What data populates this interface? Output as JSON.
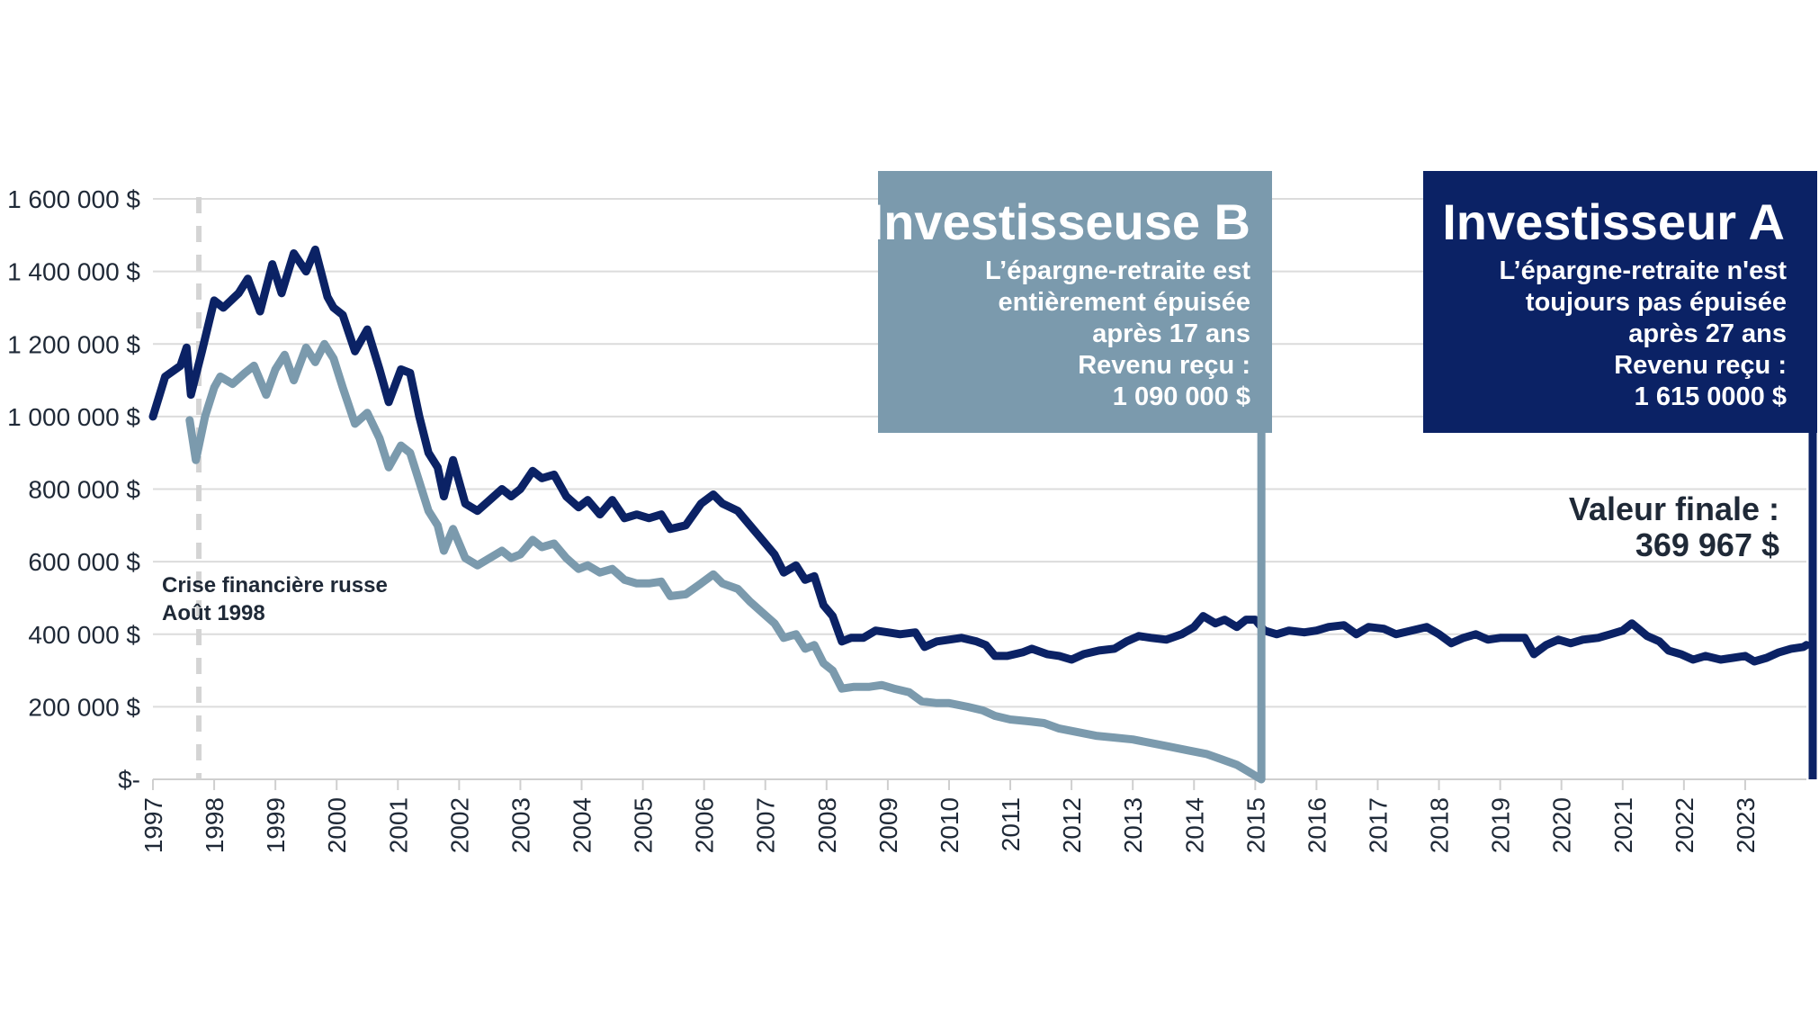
{
  "chart_data": {
    "type": "line",
    "x_unit": "year",
    "xlim": [
      1997,
      2024
    ],
    "ylim": [
      0,
      1600000
    ],
    "y_ticks": [
      0,
      200000,
      400000,
      600000,
      800000,
      1000000,
      1200000,
      1400000,
      1600000
    ],
    "y_tick_labels": [
      "$-",
      "200 000 $",
      "400 000 $",
      "600 000 $",
      "800 000 $",
      "1 000 000 $",
      "1 200 000 $",
      "1 400 000 $",
      "1 600 000 $"
    ],
    "x_tick_labels": [
      "1997",
      "1998",
      "1999",
      "2000",
      "2001",
      "2002",
      "2003",
      "2004",
      "2005",
      "2006",
      "2007",
      "2008",
      "2009",
      "2010",
      "2011",
      "2012",
      "2013",
      "2014",
      "2015",
      "2016",
      "2017",
      "2018",
      "2019",
      "2020",
      "2021",
      "2022",
      "2023"
    ],
    "grid": true,
    "series": [
      {
        "key": "investor_a",
        "color": "#0b2265",
        "points": [
          [
            1997.0,
            1000000
          ],
          [
            1997.2,
            1110000
          ],
          [
            1997.45,
            1140000
          ],
          [
            1997.55,
            1190000
          ],
          [
            1997.62,
            1060000
          ],
          [
            1997.8,
            1180000
          ],
          [
            1998.0,
            1320000
          ],
          [
            1998.15,
            1300000
          ],
          [
            1998.4,
            1340000
          ],
          [
            1998.55,
            1380000
          ],
          [
            1998.75,
            1290000
          ],
          [
            1998.95,
            1420000
          ],
          [
            1999.1,
            1340000
          ],
          [
            1999.3,
            1450000
          ],
          [
            1999.5,
            1400000
          ],
          [
            1999.65,
            1460000
          ],
          [
            1999.85,
            1330000
          ],
          [
            1999.95,
            1300000
          ],
          [
            2000.1,
            1280000
          ],
          [
            2000.3,
            1180000
          ],
          [
            2000.5,
            1240000
          ],
          [
            2000.7,
            1130000
          ],
          [
            2000.85,
            1040000
          ],
          [
            2001.05,
            1130000
          ],
          [
            2001.2,
            1120000
          ],
          [
            2001.35,
            1000000
          ],
          [
            2001.5,
            900000
          ],
          [
            2001.65,
            860000
          ],
          [
            2001.75,
            780000
          ],
          [
            2001.9,
            880000
          ],
          [
            2002.1,
            760000
          ],
          [
            2002.3,
            740000
          ],
          [
            2002.5,
            770000
          ],
          [
            2002.7,
            800000
          ],
          [
            2002.85,
            780000
          ],
          [
            2003.0,
            800000
          ],
          [
            2003.2,
            850000
          ],
          [
            2003.35,
            830000
          ],
          [
            2003.55,
            840000
          ],
          [
            2003.75,
            780000
          ],
          [
            2003.95,
            750000
          ],
          [
            2004.1,
            770000
          ],
          [
            2004.3,
            730000
          ],
          [
            2004.5,
            770000
          ],
          [
            2004.7,
            720000
          ],
          [
            2004.9,
            730000
          ],
          [
            2005.1,
            720000
          ],
          [
            2005.3,
            730000
          ],
          [
            2005.45,
            690000
          ],
          [
            2005.7,
            700000
          ],
          [
            2005.95,
            760000
          ],
          [
            2006.15,
            785000
          ],
          [
            2006.3,
            760000
          ],
          [
            2006.55,
            740000
          ],
          [
            2006.75,
            700000
          ],
          [
            2006.95,
            660000
          ],
          [
            2007.15,
            620000
          ],
          [
            2007.3,
            570000
          ],
          [
            2007.5,
            590000
          ],
          [
            2007.65,
            550000
          ],
          [
            2007.8,
            560000
          ],
          [
            2007.95,
            480000
          ],
          [
            2008.1,
            450000
          ],
          [
            2008.25,
            380000
          ],
          [
            2008.4,
            390000
          ],
          [
            2008.6,
            390000
          ],
          [
            2008.8,
            410000
          ],
          [
            2009.0,
            405000
          ],
          [
            2009.2,
            400000
          ],
          [
            2009.45,
            405000
          ],
          [
            2009.6,
            365000
          ],
          [
            2009.8,
            380000
          ],
          [
            2010.0,
            385000
          ],
          [
            2010.2,
            390000
          ],
          [
            2010.45,
            380000
          ],
          [
            2010.6,
            370000
          ],
          [
            2010.75,
            340000
          ],
          [
            2010.95,
            340000
          ],
          [
            2011.2,
            350000
          ],
          [
            2011.35,
            360000
          ],
          [
            2011.6,
            345000
          ],
          [
            2011.8,
            340000
          ],
          [
            2012.0,
            330000
          ],
          [
            2012.2,
            345000
          ],
          [
            2012.45,
            355000
          ],
          [
            2012.7,
            360000
          ],
          [
            2012.9,
            380000
          ],
          [
            2013.1,
            395000
          ],
          [
            2013.3,
            390000
          ],
          [
            2013.55,
            385000
          ],
          [
            2013.8,
            400000
          ],
          [
            2014.0,
            420000
          ],
          [
            2014.15,
            450000
          ],
          [
            2014.35,
            430000
          ],
          [
            2014.5,
            440000
          ],
          [
            2014.7,
            420000
          ],
          [
            2014.85,
            440000
          ],
          [
            2015.0,
            440000
          ],
          [
            2015.15,
            410000
          ],
          [
            2015.35,
            400000
          ],
          [
            2015.55,
            410000
          ],
          [
            2015.8,
            405000
          ],
          [
            2016.0,
            410000
          ],
          [
            2016.2,
            420000
          ],
          [
            2016.45,
            425000
          ],
          [
            2016.65,
            400000
          ],
          [
            2016.85,
            420000
          ],
          [
            2017.1,
            415000
          ],
          [
            2017.3,
            400000
          ],
          [
            2017.55,
            410000
          ],
          [
            2017.8,
            420000
          ],
          [
            2018.0,
            400000
          ],
          [
            2018.2,
            375000
          ],
          [
            2018.4,
            390000
          ],
          [
            2018.6,
            400000
          ],
          [
            2018.8,
            385000
          ],
          [
            2019.0,
            390000
          ],
          [
            2019.2,
            390000
          ],
          [
            2019.4,
            390000
          ],
          [
            2019.55,
            345000
          ],
          [
            2019.75,
            370000
          ],
          [
            2019.95,
            385000
          ],
          [
            2020.15,
            375000
          ],
          [
            2020.35,
            385000
          ],
          [
            2020.6,
            390000
          ],
          [
            2020.8,
            400000
          ],
          [
            2021.0,
            410000
          ],
          [
            2021.15,
            430000
          ],
          [
            2021.4,
            395000
          ],
          [
            2021.6,
            380000
          ],
          [
            2021.75,
            355000
          ],
          [
            2021.95,
            345000
          ],
          [
            2022.15,
            330000
          ],
          [
            2022.35,
            340000
          ],
          [
            2022.6,
            330000
          ],
          [
            2022.8,
            335000
          ],
          [
            2023.0,
            340000
          ],
          [
            2023.15,
            325000
          ],
          [
            2023.35,
            335000
          ],
          [
            2023.55,
            350000
          ],
          [
            2023.75,
            360000
          ],
          [
            2023.95,
            365000
          ],
          [
            2024.0,
            370000
          ]
        ]
      },
      {
        "key": "investor_b",
        "color": "#7b9aad",
        "points": [
          [
            1997.6,
            990000
          ],
          [
            1997.7,
            880000
          ],
          [
            1997.85,
            1000000
          ],
          [
            1998.0,
            1080000
          ],
          [
            1998.1,
            1110000
          ],
          [
            1998.3,
            1090000
          ],
          [
            1998.5,
            1120000
          ],
          [
            1998.65,
            1140000
          ],
          [
            1998.85,
            1060000
          ],
          [
            1999.0,
            1130000
          ],
          [
            1999.15,
            1170000
          ],
          [
            1999.3,
            1100000
          ],
          [
            1999.5,
            1190000
          ],
          [
            1999.65,
            1150000
          ],
          [
            1999.8,
            1200000
          ],
          [
            1999.95,
            1160000
          ],
          [
            2000.1,
            1080000
          ],
          [
            2000.3,
            980000
          ],
          [
            2000.5,
            1010000
          ],
          [
            2000.7,
            940000
          ],
          [
            2000.85,
            860000
          ],
          [
            2001.05,
            920000
          ],
          [
            2001.2,
            900000
          ],
          [
            2001.35,
            820000
          ],
          [
            2001.5,
            740000
          ],
          [
            2001.65,
            700000
          ],
          [
            2001.75,
            630000
          ],
          [
            2001.9,
            690000
          ],
          [
            2002.1,
            610000
          ],
          [
            2002.3,
            590000
          ],
          [
            2002.5,
            610000
          ],
          [
            2002.7,
            630000
          ],
          [
            2002.85,
            610000
          ],
          [
            2003.0,
            620000
          ],
          [
            2003.2,
            660000
          ],
          [
            2003.35,
            640000
          ],
          [
            2003.55,
            650000
          ],
          [
            2003.75,
            610000
          ],
          [
            2003.95,
            580000
          ],
          [
            2004.1,
            590000
          ],
          [
            2004.3,
            570000
          ],
          [
            2004.5,
            580000
          ],
          [
            2004.7,
            550000
          ],
          [
            2004.9,
            540000
          ],
          [
            2005.1,
            540000
          ],
          [
            2005.3,
            545000
          ],
          [
            2005.45,
            505000
          ],
          [
            2005.7,
            510000
          ],
          [
            2005.95,
            540000
          ],
          [
            2006.15,
            565000
          ],
          [
            2006.3,
            540000
          ],
          [
            2006.55,
            525000
          ],
          [
            2006.75,
            490000
          ],
          [
            2006.95,
            460000
          ],
          [
            2007.15,
            430000
          ],
          [
            2007.3,
            390000
          ],
          [
            2007.5,
            400000
          ],
          [
            2007.65,
            360000
          ],
          [
            2007.8,
            370000
          ],
          [
            2007.95,
            320000
          ],
          [
            2008.1,
            300000
          ],
          [
            2008.25,
            250000
          ],
          [
            2008.45,
            255000
          ],
          [
            2008.7,
            255000
          ],
          [
            2008.9,
            260000
          ],
          [
            2009.1,
            250000
          ],
          [
            2009.35,
            240000
          ],
          [
            2009.55,
            215000
          ],
          [
            2009.8,
            210000
          ],
          [
            2010.0,
            210000
          ],
          [
            2010.3,
            200000
          ],
          [
            2010.55,
            190000
          ],
          [
            2010.75,
            175000
          ],
          [
            2011.0,
            165000
          ],
          [
            2011.3,
            160000
          ],
          [
            2011.55,
            155000
          ],
          [
            2011.8,
            140000
          ],
          [
            2012.1,
            130000
          ],
          [
            2012.4,
            120000
          ],
          [
            2012.7,
            115000
          ],
          [
            2013.0,
            110000
          ],
          [
            2013.3,
            100000
          ],
          [
            2013.6,
            90000
          ],
          [
            2013.9,
            80000
          ],
          [
            2014.2,
            70000
          ],
          [
            2014.45,
            55000
          ],
          [
            2014.7,
            40000
          ],
          [
            2014.9,
            20000
          ],
          [
            2015.05,
            5000
          ],
          [
            2015.1,
            0
          ]
        ]
      }
    ],
    "annotations": {
      "crisis_x": 1997.75,
      "crisis_line1": "Crise financière russe",
      "crisis_line2": "Août 1998",
      "box_b": {
        "color": "#7b9aad",
        "title": "Investisseuse B",
        "lines": [
          "L’épargne-retraite est",
          "entièrement épuisée",
          "après 17 ans",
          "Revenu reçu :",
          "1 090 000 $"
        ],
        "marker_x": 2015.1
      },
      "box_a": {
        "color": "#0b2265",
        "title": "Investisseur A",
        "lines": [
          "L’épargne-retraite n'est",
          "toujours pas épuisée",
          "après 27 ans",
          "Revenu reçu :",
          "1 615 0000 $"
        ],
        "marker_x": 2024.0
      },
      "final_value_label": "Valeur finale :",
      "final_value": "369 967 $"
    }
  }
}
